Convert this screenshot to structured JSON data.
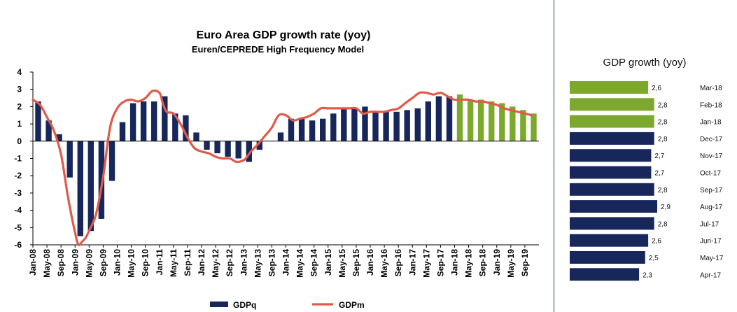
{
  "main": {
    "title": "Euro Area GDP growth rate (yoy)",
    "subtitle": "Euren/CEPREDE  High Frequency Model",
    "legend": [
      "GDPq",
      "GDPm"
    ]
  },
  "side": {
    "title": "GDP growth (yoy)"
  },
  "colors": {
    "navy": "#17275c",
    "green": "#7ca82d",
    "line": "#e05a4a",
    "panel_border": "#1f3a68"
  },
  "chart_data": [
    {
      "type": "bar",
      "title": "Euro Area GDP growth rate (yoy)",
      "subtitle": "Euren/CEPREDE  High Frequency Model",
      "ylim": [
        -6,
        4
      ],
      "yticks": [
        4,
        3,
        2,
        1,
        0,
        -1,
        -2,
        -3,
        -4,
        -5,
        -6
      ],
      "grid": false,
      "legend_position": "bottom",
      "xtick_labels": [
        "Jan-08",
        "May-08",
        "Sep-08",
        "Jan-09",
        "May-09",
        "Sep-09",
        "Jan-10",
        "May-10",
        "Sep-10",
        "Jan-11",
        "May-11",
        "Sep-11",
        "Jan-12",
        "May-12",
        "Sep-12",
        "Jan-13",
        "May-13",
        "Sep-13",
        "Jan-14",
        "May-14",
        "Sep-14",
        "Jan-15",
        "May-15",
        "Sep-15",
        "Jan-16",
        "May-16",
        "Sep-16",
        "Jan-17",
        "May-17",
        "Sep-17",
        "Jan-18",
        "May-18",
        "Sep-18",
        "Jan-19",
        "May-19",
        "Sep-19"
      ],
      "quarters": [
        "Q1-08",
        "Q2-08",
        "Q3-08",
        "Q4-08",
        "Q1-09",
        "Q2-09",
        "Q3-09",
        "Q4-09",
        "Q1-10",
        "Q2-10",
        "Q3-10",
        "Q4-10",
        "Q1-11",
        "Q2-11",
        "Q3-11",
        "Q4-11",
        "Q1-12",
        "Q2-12",
        "Q3-12",
        "Q4-12",
        "Q1-13",
        "Q2-13",
        "Q3-13",
        "Q4-13",
        "Q1-14",
        "Q2-14",
        "Q3-14",
        "Q4-14",
        "Q1-15",
        "Q2-15",
        "Q3-15",
        "Q4-15",
        "Q1-16",
        "Q2-16",
        "Q3-16",
        "Q4-16",
        "Q1-17",
        "Q2-17",
        "Q3-17",
        "Q4-17",
        "Q1-18",
        "Q2-18",
        "Q3-18",
        "Q4-18",
        "Q1-19",
        "Q2-19",
        "Q3-19",
        "Q4-19"
      ],
      "series": [
        {
          "name": "GDPq",
          "type": "bar",
          "values": [
            2.3,
            1.2,
            0.4,
            -2.1,
            -5.5,
            -5.2,
            -4.5,
            -2.3,
            1.1,
            2.2,
            2.3,
            2.3,
            2.6,
            1.6,
            1.5,
            0.5,
            -0.5,
            -0.7,
            -0.9,
            -1.0,
            -1.2,
            -0.5,
            0.0,
            0.5,
            1.3,
            1.3,
            1.2,
            1.3,
            1.6,
            1.9,
            1.9,
            2.0,
            1.7,
            1.7,
            1.7,
            1.8,
            1.9,
            2.3,
            2.6,
            2.6,
            2.7,
            2.4,
            2.4,
            2.3,
            2.2,
            2.0,
            1.8,
            1.6
          ],
          "forecast_from": "Q1-18"
        },
        {
          "name": "GDPm",
          "type": "line",
          "x": [
            2008.0,
            2008.17,
            2008.33,
            2008.5,
            2008.67,
            2008.83,
            2009.0,
            2009.08,
            2009.17,
            2009.25,
            2009.33,
            2009.5,
            2009.67,
            2009.83,
            2010.0,
            2010.17,
            2010.33,
            2010.5,
            2010.67,
            2010.83,
            2011.0,
            2011.08,
            2011.17,
            2011.33,
            2011.5,
            2011.67,
            2011.83,
            2012.0,
            2012.17,
            2012.33,
            2012.5,
            2012.67,
            2012.83,
            2013.0,
            2013.08,
            2013.17,
            2013.33,
            2013.5,
            2013.67,
            2013.83,
            2014.0,
            2014.17,
            2014.33,
            2014.5,
            2014.67,
            2014.83,
            2015.0,
            2015.17,
            2015.33,
            2015.5,
            2015.67,
            2015.83,
            2016.0,
            2016.17,
            2016.33,
            2016.5,
            2016.67,
            2016.83,
            2017.0,
            2017.17,
            2017.33,
            2017.5,
            2017.67,
            2017.83,
            2018.0,
            2018.17,
            2018.33,
            2018.5,
            2018.67,
            2018.83,
            2019.0,
            2019.17,
            2019.33,
            2019.5,
            2019.67,
            2019.83
          ],
          "values": [
            2.4,
            2.1,
            1.4,
            0.6,
            -0.8,
            -3.2,
            -5.3,
            -6.0,
            -5.8,
            -5.6,
            -5.2,
            -4.2,
            -2.0,
            0.8,
            1.9,
            2.3,
            2.4,
            2.3,
            2.5,
            2.9,
            2.8,
            2.2,
            1.7,
            1.6,
            1.0,
            0.2,
            -0.4,
            -0.6,
            -0.7,
            -0.9,
            -1.0,
            -1.0,
            -1.2,
            -1.1,
            -0.9,
            -0.6,
            -0.2,
            0.3,
            0.8,
            1.5,
            1.5,
            1.2,
            1.3,
            1.4,
            1.6,
            1.9,
            1.9,
            1.9,
            1.9,
            1.9,
            1.9,
            1.6,
            1.7,
            1.7,
            1.7,
            1.8,
            1.9,
            2.2,
            2.5,
            2.8,
            2.8,
            2.7,
            2.8,
            2.6,
            2.4,
            2.4,
            2.4,
            2.3,
            2.3,
            2.2,
            2.1,
            1.9,
            1.8,
            1.7,
            1.6,
            1.5
          ]
        }
      ]
    },
    {
      "type": "bar",
      "orientation": "horizontal",
      "title": "GDP growth (yoy)",
      "xlim": [
        0,
        3.7
      ],
      "categories": [
        "Mar-18",
        "Feb-18",
        "Jan-18",
        "Dec-17",
        "Nov-17",
        "Oct-17",
        "Sep-17",
        "Aug-17",
        "Jul-17",
        "Jun-17",
        "May-17",
        "Apr-17"
      ],
      "values": [
        2.6,
        2.8,
        2.8,
        2.8,
        2.7,
        2.7,
        2.8,
        2.9,
        2.8,
        2.6,
        2.5,
        2.3
      ],
      "value_labels": [
        "2,6",
        "2,8",
        "2,8",
        "2,8",
        "2,7",
        "2,7",
        "2,8",
        "2,9",
        "2,8",
        "2,6",
        "2,5",
        "2,3"
      ],
      "highlighted": [
        "Mar-18",
        "Feb-18",
        "Jan-18"
      ]
    }
  ]
}
